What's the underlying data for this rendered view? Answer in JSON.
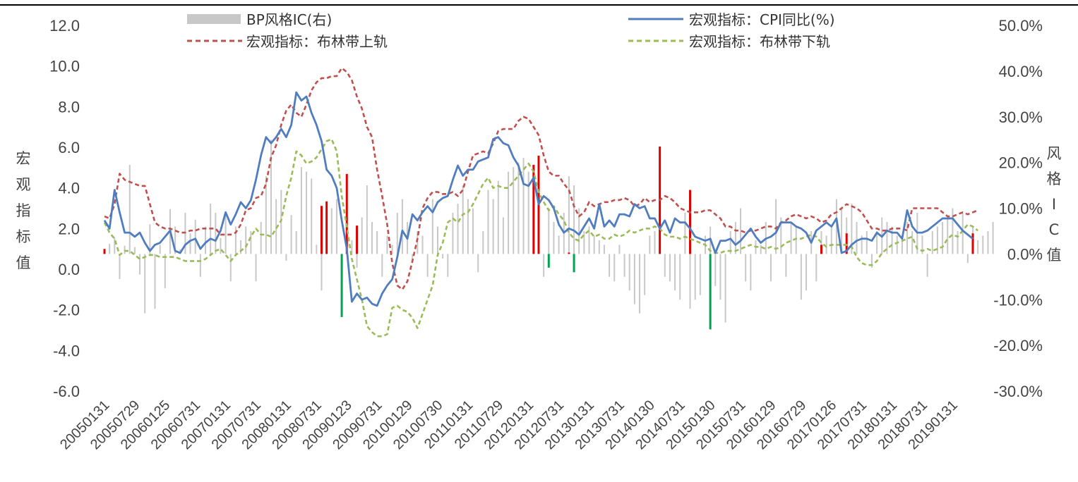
{
  "chart_data": {
    "type": "line+bar",
    "title": "",
    "ylabel_left": "宏观指标值",
    "ylabel_right": "风格IC值",
    "ylim_left": [
      -6,
      12
    ],
    "ylim_right": [
      -0.3,
      0.5
    ],
    "yticks_left": [
      "12.0",
      "10.0",
      "8.0",
      "6.0",
      "4.0",
      "2.0",
      "0.0",
      "-2.0",
      "-4.0",
      "-6.0"
    ],
    "yticks_right": [
      "50.0%",
      "40.0%",
      "30.0%",
      "20.0%",
      "10.0%",
      "0.0%",
      "-10.0%",
      "-20.0%",
      "-30.0%"
    ],
    "x_tick_labels": [
      "20050131",
      "20050729",
      "20060125",
      "20060731",
      "20070131",
      "20070731",
      "20080131",
      "20080731",
      "20090123",
      "20090731",
      "20100129",
      "20100730",
      "20110131",
      "20110729",
      "20120131",
      "20120731",
      "20130131",
      "20130731",
      "20140130",
      "20140731",
      "20150130",
      "20150731",
      "20160129",
      "20160729",
      "20170126",
      "20170731",
      "20180131",
      "20180731",
      "20190131"
    ],
    "legend": {
      "placement": "top",
      "items": [
        {
          "key": "ic",
          "label": "BP风格IC(右)"
        },
        {
          "key": "cpi",
          "label": "宏观指标：CPI同比(%)"
        },
        {
          "key": "upper",
          "label": "宏观指标：布林带上轨"
        },
        {
          "key": "lower",
          "label": "宏观指标：布林带下轨"
        }
      ]
    },
    "colors": {
      "cpi": "#4F7DBF",
      "upper": "#C0504D",
      "lower": "#9BBB59",
      "ic": "#C8C8C8",
      "signal_up": "#E00000",
      "signal_down": "#00A550"
    },
    "series": {
      "cpi": [
        2.4,
        2.0,
        3.9,
        2.8,
        1.8,
        1.8,
        1.6,
        1.8,
        1.3,
        0.9,
        1.2,
        1.3,
        1.6,
        1.9,
        0.9,
        0.8,
        1.2,
        1.4,
        1.5,
        1.0,
        1.3,
        1.5,
        1.4,
        1.9,
        2.8,
        2.2,
        2.7,
        3.3,
        3.0,
        3.4,
        4.4,
        5.6,
        6.5,
        6.2,
        6.5,
        6.9,
        6.5,
        7.1,
        8.7,
        8.3,
        8.5,
        7.7,
        7.1,
        6.3,
        4.9,
        4.6,
        4.0,
        2.4,
        1.0,
        -1.6,
        -1.2,
        -1.5,
        -1.4,
        -1.7,
        -1.8,
        -1.2,
        -0.8,
        -0.5,
        0.6,
        1.9,
        1.5,
        2.7,
        2.4,
        2.8,
        3.1,
        2.8,
        3.3,
        3.5,
        3.6,
        4.4,
        5.1,
        4.6,
        4.9,
        4.9,
        5.3,
        5.4,
        5.5,
        6.4,
        6.5,
        6.2,
        6.1,
        5.5,
        5.1,
        4.2,
        4.1,
        4.5,
        3.2,
        3.6,
        3.4,
        3.0,
        2.2,
        1.8,
        2.0,
        1.9,
        1.7,
        2.1,
        2.5,
        2.0,
        3.2,
        2.1,
        2.4,
        2.1,
        2.7,
        2.7,
        2.6,
        3.2,
        3.0,
        3.1,
        2.5,
        2.5,
        2.0,
        2.4,
        1.8,
        2.5,
        2.3,
        2.3,
        2.0,
        1.6,
        1.5,
        1.4,
        1.5,
        0.8,
        1.4,
        1.4,
        1.5,
        1.2,
        1.4,
        1.7,
        2.0,
        1.6,
        1.3,
        1.5,
        1.6,
        1.8,
        2.3,
        2.3,
        2.3,
        2.1,
        2.0,
        1.8,
        1.3,
        1.9,
        2.1,
        2.3,
        2.1,
        2.5,
        0.8,
        0.9,
        1.2,
        1.4,
        1.5,
        1.5,
        1.4,
        1.8,
        1.6,
        1.9,
        1.8,
        1.8,
        1.5,
        2.9,
        2.1,
        1.8,
        1.8,
        1.9,
        2.1,
        2.3,
        2.5,
        2.5,
        2.5,
        2.2,
        1.9,
        1.7,
        1.5
      ],
      "upper": [
        2.6,
        2.5,
        3.2,
        4.7,
        4.4,
        4.3,
        4.2,
        4.1,
        4.1,
        3.2,
        2.3,
        2.1,
        2.0,
        2.0,
        1.9,
        1.8,
        1.8,
        1.9,
        1.9,
        2.0,
        2.0,
        2.0,
        2.0,
        1.7,
        1.7,
        1.7,
        1.8,
        2.2,
        2.9,
        3.0,
        3.5,
        3.6,
        4.2,
        5.5,
        6.1,
        7.1,
        7.8,
        8.1,
        7.7,
        7.5,
        8.1,
        8.8,
        9.2,
        9.4,
        9.4,
        9.5,
        9.5,
        9.9,
        9.7,
        9.3,
        8.5,
        7.9,
        7.0,
        6.5,
        4.9,
        3.6,
        2.2,
        0.3,
        -0.8,
        -1.0,
        -0.6,
        0.4,
        1.5,
        3.0,
        3.5,
        3.8,
        3.8,
        3.7,
        3.7,
        3.8,
        3.6,
        3.9,
        4.8,
        5.6,
        5.7,
        5.8,
        5.7,
        6.2,
        6.8,
        6.9,
        6.9,
        6.9,
        7.3,
        7.5,
        7.4,
        7.0,
        6.6,
        5.6,
        4.8,
        4.6,
        4.6,
        4.2,
        3.9,
        3.1,
        2.6,
        2.8,
        3.3,
        3.1,
        3.2,
        3.3,
        3.3,
        3.4,
        3.4,
        3.5,
        3.4,
        3.1,
        3.2,
        3.5,
        3.3,
        3.4,
        3.4,
        3.6,
        3.5,
        3.3,
        3.0,
        2.9,
        2.8,
        2.8,
        2.8,
        2.9,
        2.9,
        2.7,
        2.5,
        2.1,
        2.1,
        1.9,
        1.9,
        1.8,
        1.9,
        1.9,
        2.0,
        2.1,
        2.1,
        2.0,
        2.3,
        2.4,
        2.6,
        2.7,
        2.6,
        2.5,
        2.6,
        2.5,
        2.3,
        2.4,
        2.7,
        2.8,
        3.0,
        3.2,
        3.1,
        3.0,
        2.8,
        2.4,
        2.0,
        2.0,
        1.9,
        1.9,
        2.0,
        2.0,
        2.0,
        1.9,
        3.0,
        3.0,
        3.0,
        3.0,
        3.0,
        3.0,
        2.8,
        2.6,
        2.6,
        2.7,
        2.8,
        2.7,
        2.8,
        2.9
      ],
      "lower": [
        2.3,
        1.8,
        1.5,
        0.7,
        0.9,
        0.9,
        0.7,
        0.5,
        0.6,
        0.7,
        0.7,
        0.6,
        0.6,
        0.6,
        0.6,
        0.5,
        0.4,
        0.4,
        0.4,
        0.4,
        0.5,
        0.7,
        0.9,
        1.0,
        0.7,
        0.4,
        0.7,
        0.9,
        1.1,
        1.6,
        2.0,
        1.7,
        1.7,
        1.6,
        2.0,
        2.4,
        3.6,
        4.5,
        5.8,
        5.6,
        5.2,
        5.3,
        5.5,
        5.9,
        6.3,
        6.4,
        5.8,
        3.6,
        2.1,
        0.5,
        -0.5,
        -1.5,
        -2.8,
        -3.1,
        -3.3,
        -3.3,
        -3.2,
        -1.9,
        -1.8,
        -2.0,
        -2.1,
        -2.4,
        -2.9,
        -2.2,
        -1.5,
        -0.8,
        0.7,
        1.3,
        2.3,
        2.5,
        2.3,
        2.7,
        2.8,
        3.2,
        3.7,
        4.2,
        4.5,
        4.0,
        4.1,
        4.0,
        4.0,
        4.3,
        4.6,
        4.9,
        5.2,
        4.8,
        3.8,
        3.3,
        2.9,
        3.1,
        2.7,
        2.4,
        1.8,
        1.5,
        1.4,
        1.7,
        1.9,
        1.6,
        1.7,
        1.5,
        1.5,
        1.7,
        1.6,
        1.7,
        1.9,
        1.8,
        1.9,
        2.0,
        2.0,
        2.1,
        2.0,
        1.7,
        1.6,
        1.6,
        1.5,
        1.6,
        1.5,
        1.4,
        1.3,
        1.2,
        0.9,
        0.8,
        0.8,
        0.9,
        0.9,
        0.9,
        1.0,
        1.1,
        1.2,
        1.1,
        1.1,
        1.0,
        1.1,
        1.0,
        1.1,
        1.3,
        1.4,
        1.5,
        1.5,
        1.6,
        1.7,
        1.6,
        1.3,
        1.1,
        1.2,
        1.2,
        1.2,
        1.2,
        1.1,
        0.6,
        0.3,
        0.2,
        0.2,
        0.4,
        0.8,
        1.0,
        1.2,
        1.3,
        1.4,
        1.5,
        1.6,
        1.0,
        0.9,
        1.0,
        0.9,
        1.0,
        1.1,
        1.5,
        1.7,
        1.6,
        1.9,
        2.2,
        2.1,
        1.9
      ],
      "ic": [
        0.001,
        0.022,
        0.037,
        -0.055,
        0.018,
        0.195,
        0.015,
        -0.045,
        -0.13,
        0.065,
        -0.12,
        0.02,
        -0.075,
        0.098,
        0.06,
        0.01,
        0.09,
        0.045,
        0.075,
        -0.05,
        0.06,
        0.11,
        0.09,
        0.035,
        0.09,
        -0.06,
        0.06,
        0.03,
        0.06,
        0.05,
        -0.06,
        0.07,
        0.17,
        0.25,
        0.12,
        0.14,
        -0.015,
        0.085,
        0.05,
        0.19,
        0.18,
        0.165,
        0.02,
        -0.08,
        0.03,
        0.1,
        0.12,
        -0.07,
        0.01,
        0.03,
        -0.03,
        0.08,
        0.15,
        0.07,
        0.05,
        -0.05,
        0.04,
        0.02,
        0.09,
        0.12,
        0.07,
        -0.02,
        0.05,
        0.04,
        -0.05,
        0.12,
        0.06,
        -0.01,
        -0.05,
        0.09,
        0.11,
        0.15,
        0.12,
        0.1,
        -0.04,
        0.05,
        0.14,
        0.12,
        0.16,
        0.08,
        0.18,
        0.19,
        0.2,
        0.21,
        0.18,
        0.13,
        0.12,
        -0.05,
        0.1,
        0.07,
        0.04,
        0.09,
        0.17,
        0.15,
        0.1,
        0.05,
        0.06,
        0.04,
        0.03,
        0.02,
        -0.05,
        -0.06,
        0.02,
        -0.05,
        -0.08,
        -0.11,
        -0.13,
        -0.09,
        0.04,
        0.05,
        0.05,
        -0.05,
        -0.06,
        -0.08,
        -0.1,
        0.09,
        -0.12,
        -0.1,
        -0.09,
        0.04,
        0.06,
        -0.07,
        -0.1,
        -0.15,
        0.05,
        0.07,
        0.1,
        -0.06,
        -0.08,
        0.03,
        0.02,
        0.07,
        -0.06,
        0.12,
        0.08,
        -0.05,
        0.07,
        0.06,
        -0.1,
        -0.08,
        0.05,
        -0.06,
        0.05,
        0.04,
        0.06,
        0.12,
        0.1,
        0.08,
        0.11,
        0.07,
        0.04,
        0.05,
        -0.03,
        0.05,
        0.08,
        0.07,
        0.06,
        0.04,
        0.03,
        0.07,
        0.05,
        0.09,
        0.04,
        -0.05,
        0.05,
        0.06,
        0.07,
        0.08,
        0.1,
        0.05,
        0.09,
        -0.02,
        0.06,
        0.03,
        0.04,
        0.05,
        0.07
      ],
      "signals": [
        {
          "i": 0,
          "side": "up",
          "pct": 0.011
        },
        {
          "i": 43,
          "side": "up",
          "pct": 0.105
        },
        {
          "i": 44,
          "side": "up",
          "pct": 0.115
        },
        {
          "i": 47,
          "side": "down",
          "pct": -0.138
        },
        {
          "i": 48,
          "side": "up",
          "pct": 0.175
        },
        {
          "i": 50,
          "side": "up",
          "pct": 0.062
        },
        {
          "i": 85,
          "side": "up",
          "pct": 0.195
        },
        {
          "i": 86,
          "side": "up",
          "pct": 0.215
        },
        {
          "i": 88,
          "side": "down",
          "pct": -0.03
        },
        {
          "i": 92,
          "side": "up",
          "pct": 0.003
        },
        {
          "i": 93,
          "side": "down",
          "pct": -0.04
        },
        {
          "i": 110,
          "side": "up",
          "pct": 0.235
        },
        {
          "i": 116,
          "side": "up",
          "pct": 0.14
        },
        {
          "i": 120,
          "side": "down",
          "pct": -0.165
        },
        {
          "i": 142,
          "side": "up",
          "pct": 0.02
        },
        {
          "i": 147,
          "side": "up",
          "pct": 0.045
        },
        {
          "i": 172,
          "side": "up",
          "pct": 0.045
        }
      ]
    }
  }
}
